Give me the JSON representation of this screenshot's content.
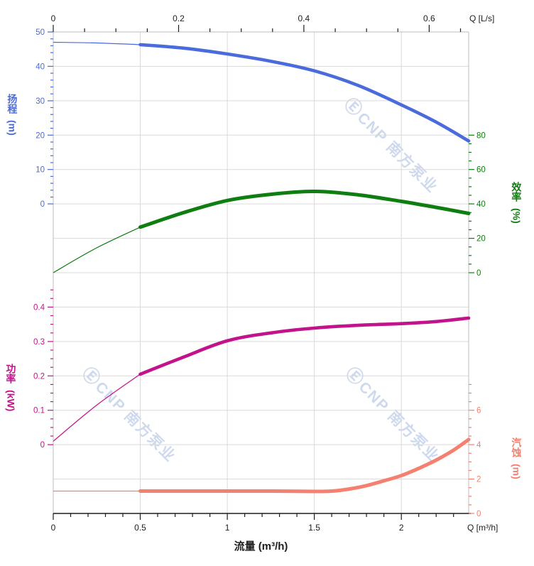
{
  "watermark": {
    "logo": "Ⓔ",
    "text": "CNP 南方泵业"
  },
  "chart_data": {
    "type": "line",
    "title": "",
    "grid": true,
    "legend": "none",
    "x_axis_bottom": {
      "title": "流量 (m³/h)",
      "corner_label": "Q [m³/h]",
      "tick_labels": [
        0,
        0.5,
        1,
        1.5,
        2
      ],
      "minor_step": 0.1,
      "minor_max": 2.3,
      "range": [
        0,
        2.387
      ],
      "color": "#1d1d1d"
    },
    "x_axis_top": {
      "corner_label": "Q [L/s]",
      "tick_labels": [
        0,
        0.2,
        0.4,
        0.6
      ],
      "minor_step": 0.05,
      "minor_max": 0.65,
      "range": [
        0,
        0.663
      ],
      "color": "#1d1d1d"
    },
    "y_axes": {
      "head": {
        "title": "扬程",
        "unit": "(m)",
        "color": "#4a6bdc",
        "tick_labels": [
          0,
          10,
          20,
          30,
          40,
          50
        ],
        "minor_step": 2,
        "minor_max": 50,
        "range": [
          0,
          50
        ]
      },
      "efficiency": {
        "title": "效率",
        "unit": "(%)",
        "color": "#0f7e11",
        "tick_labels": [
          0,
          20,
          40,
          60,
          80
        ],
        "minor_step": 5,
        "minor_max": 80,
        "range": [
          0,
          80
        ]
      },
      "power": {
        "title": "功率",
        "unit": "(kW)",
        "color": "#c2138b",
        "tick_labels": [
          0,
          0.1,
          0.2,
          0.3,
          0.4
        ],
        "minor_step": 0.025,
        "minor_max": 0.45,
        "range": [
          0,
          0.4
        ]
      },
      "npsh": {
        "title": "汽蚀",
        "unit": "(m)",
        "color": "#f5806f",
        "tick_labels": [
          0,
          2,
          4,
          6
        ],
        "minor_step": 0.5,
        "minor_max": 7.5,
        "range": [
          0,
          6
        ]
      }
    },
    "series": [
      {
        "id": "head",
        "axis": "head",
        "color": "#4a6bdc",
        "thin_until": 0.5,
        "x": [
          0,
          0.25,
          0.5,
          0.75,
          1.0,
          1.25,
          1.5,
          1.75,
          2.0,
          2.2,
          2.387
        ],
        "values": [
          47.0,
          46.8,
          46.3,
          45.3,
          43.6,
          41.5,
          38.7,
          34.5,
          28.8,
          23.8,
          18.3
        ]
      },
      {
        "id": "efficiency",
        "axis": "efficiency",
        "color": "#0f7e11",
        "thin_until": 0.5,
        "x": [
          0,
          0.25,
          0.5,
          0.75,
          1.0,
          1.25,
          1.5,
          1.75,
          2.0,
          2.2,
          2.387
        ],
        "values": [
          0,
          14.5,
          26.5,
          35.0,
          42.0,
          45.6,
          47.3,
          45.3,
          41.5,
          38.0,
          34.5
        ]
      },
      {
        "id": "power",
        "axis": "power",
        "color": "#c2138b",
        "thin_until": 0.5,
        "x": [
          0,
          0.25,
          0.5,
          0.75,
          1.0,
          1.25,
          1.5,
          1.75,
          2.0,
          2.2,
          2.387
        ],
        "values": [
          0.01,
          0.115,
          0.205,
          0.255,
          0.302,
          0.325,
          0.339,
          0.347,
          0.352,
          0.358,
          0.368
        ]
      },
      {
        "id": "npsh",
        "axis": "npsh",
        "color": "#f5806f",
        "thin_until": 0.5,
        "x": [
          0,
          0.25,
          0.5,
          0.75,
          1.0,
          1.25,
          1.5,
          1.6,
          1.7,
          1.8,
          1.9,
          2.0,
          2.1,
          2.2,
          2.3,
          2.387
        ],
        "values": [
          1.3,
          1.3,
          1.3,
          1.3,
          1.3,
          1.3,
          1.28,
          1.3,
          1.42,
          1.62,
          1.9,
          2.2,
          2.62,
          3.1,
          3.68,
          4.3
        ]
      }
    ]
  }
}
